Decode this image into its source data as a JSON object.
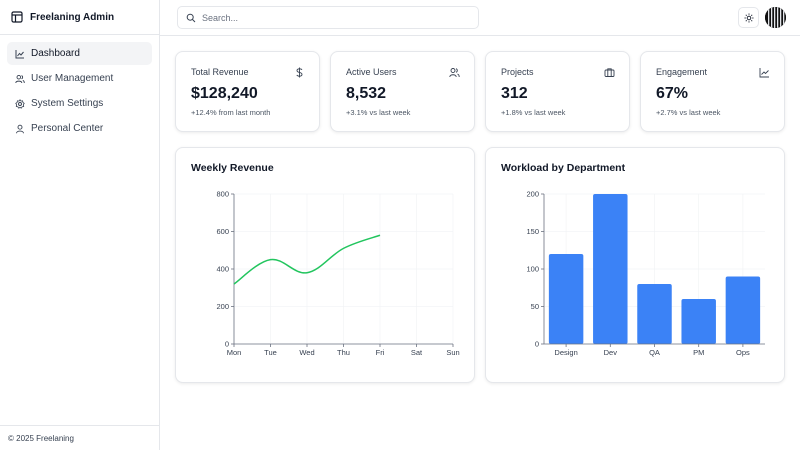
{
  "brand": {
    "title": "Freelaning Admin",
    "icon": "layout-icon"
  },
  "nav": [
    {
      "label": "Dashboard",
      "icon": "chart-line-icon",
      "active": true
    },
    {
      "label": "User Management",
      "icon": "users-icon",
      "active": false
    },
    {
      "label": "System Settings",
      "icon": "gear-icon",
      "active": false
    },
    {
      "label": "Personal Center",
      "icon": "user-icon",
      "active": false
    }
  ],
  "footer": {
    "text": "© 2025 Freelaning"
  },
  "header": {
    "search_placeholder": "Search...",
    "theme_icon": "sun-icon"
  },
  "stats": [
    {
      "label": "Total Revenue",
      "value": "$128,240",
      "sub": "+12.4% from last month",
      "icon": "dollar-icon"
    },
    {
      "label": "Active Users",
      "value": "8,532",
      "sub": "+3.1% vs last week",
      "icon": "users-icon"
    },
    {
      "label": "Projects",
      "value": "312",
      "sub": "+1.8% vs last week",
      "icon": "briefcase-icon"
    },
    {
      "label": "Engagement",
      "value": "67%",
      "sub": "+2.7% vs last week",
      "icon": "chart-icon"
    }
  ],
  "colors": {
    "line": "#22c55e",
    "bar": "#3b82f6",
    "border": "#e5e7eb"
  },
  "chart_data": [
    {
      "type": "line",
      "title": "Weekly Revenue",
      "categories": [
        "Mon",
        "Tue",
        "Wed",
        "Thu",
        "Fri",
        "Sat",
        "Sun"
      ],
      "series": [
        {
          "values": [
            320,
            450,
            380,
            510,
            580,
            null,
            null
          ]
        }
      ],
      "ylim": [
        0,
        800
      ],
      "yticks": [
        0,
        200,
        400,
        600,
        800
      ],
      "grid": true
    },
    {
      "type": "bar",
      "title": "Workload by Department",
      "categories": [
        "Design",
        "Dev",
        "QA",
        "PM",
        "Ops"
      ],
      "values": [
        120,
        200,
        80,
        60,
        90
      ],
      "ylim": [
        0,
        200
      ],
      "yticks": [
        0,
        50,
        100,
        150,
        200
      ],
      "grid": true
    }
  ]
}
